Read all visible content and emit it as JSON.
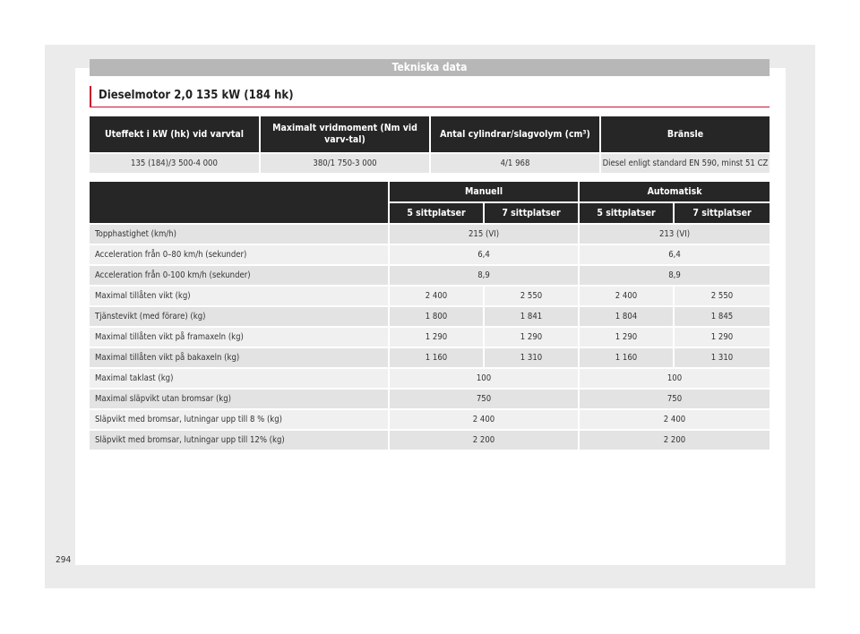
{
  "section_title": "Tekniska data",
  "engine_title": "Dieselmotor 2,0 135 kW (184 hk)",
  "engine_table": {
    "headers": [
      "Uteffekt i kW (hk) vid varvtal",
      "Maximalt vridmoment (Nm vid varv-tal)",
      "Antal cylindrar/slagvolym (cm³)",
      "Bränsle"
    ],
    "values": [
      "135 (184)/3 500-4 000",
      "380/1 750-3 000",
      "4/1 968",
      "Diesel enligt standard EN 590, minst 51 CZ"
    ]
  },
  "spec_table": {
    "groups": [
      "Manuell",
      "Automatisk"
    ],
    "subheaders": [
      "5 sittplatser",
      "7 sittplatser",
      "5 sittplatser",
      "7 sittplatser"
    ],
    "rows": [
      {
        "label": "Topphastighet (km/h)",
        "manuell": "215 (VI)",
        "automatisk": "213 (VI)"
      },
      {
        "label": "Acceleration från 0–80 km/h (sekunder)",
        "manuell": "6,4",
        "automatisk": "6,4"
      },
      {
        "label": "Acceleration från 0-100 km/h (sekunder)",
        "manuell": "8,9",
        "automatisk": "8,9"
      },
      {
        "label": "Maximal tillåten vikt (kg)",
        "values": [
          "2 400",
          "2 550",
          "2 400",
          "2 550"
        ]
      },
      {
        "label": "Tjänstevikt (med förare) (kg)",
        "values": [
          "1 800",
          "1 841",
          "1 804",
          "1 845"
        ]
      },
      {
        "label": "Maximal tillåten vikt på framaxeln (kg)",
        "values": [
          "1 290",
          "1 290",
          "1 290",
          "1 290"
        ]
      },
      {
        "label": "Maximal tillåten vikt på bakaxeln (kg)",
        "values": [
          "1 160",
          "1 310",
          "1 160",
          "1 310"
        ]
      },
      {
        "label": "Maximal taklast (kg)",
        "manuell": "100",
        "automatisk": "100"
      },
      {
        "label": "Maximal släpvikt utan bromsar (kg)",
        "manuell": "750",
        "automatisk": "750"
      },
      {
        "label": "Släpvikt med bromsar, lutningar upp till 8 % (kg)",
        "manuell": "2 400",
        "automatisk": "2 400"
      },
      {
        "label": "Släpvikt med bromsar, lutningar upp till 12% (kg)",
        "manuell": "2 200",
        "automatisk": "2 200"
      }
    ]
  },
  "page_number": "294"
}
